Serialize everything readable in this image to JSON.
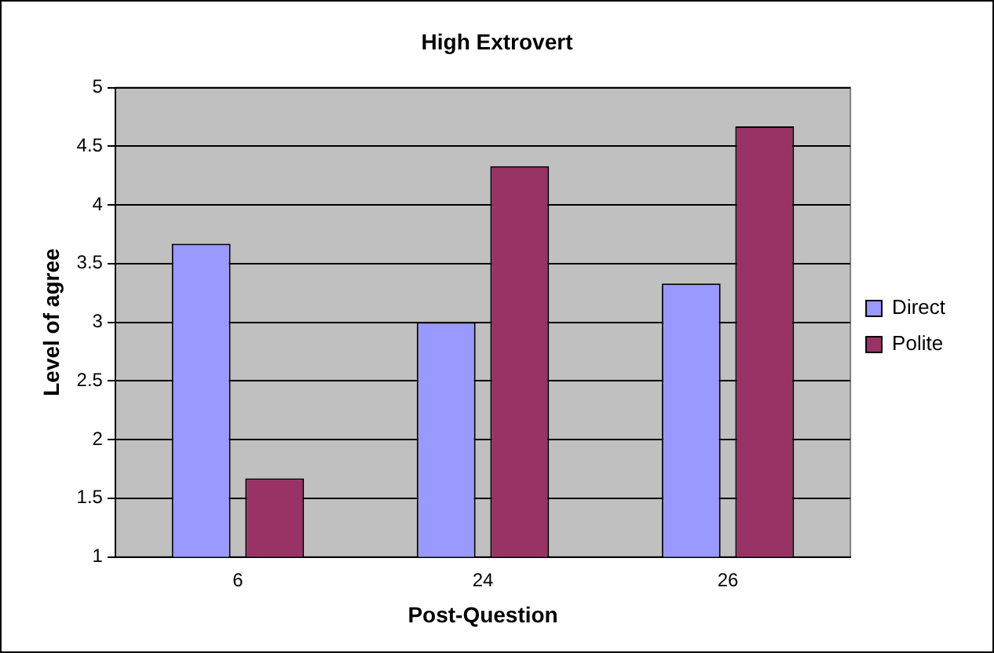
{
  "chart_data": {
    "type": "bar",
    "title": "High Extrovert",
    "xlabel": "Post-Question",
    "ylabel": "Level of agree",
    "categories": [
      "6",
      "24",
      "26"
    ],
    "series": [
      {
        "name": "Direct",
        "color": "#9999ff",
        "values": [
          3.67,
          3.0,
          3.33
        ]
      },
      {
        "name": "Polite",
        "color": "#993366",
        "values": [
          1.67,
          4.33,
          4.67
        ]
      }
    ],
    "ylim": [
      1,
      5
    ],
    "yticks": [
      1,
      1.5,
      2,
      2.5,
      3,
      3.5,
      4,
      4.5,
      5
    ],
    "grid": "y",
    "legend": "right"
  }
}
